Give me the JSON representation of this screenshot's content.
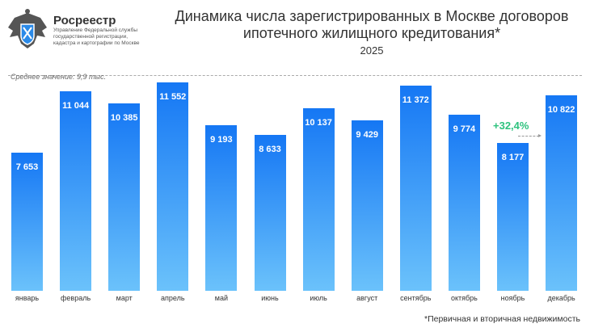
{
  "header": {
    "brand": "Росреестр",
    "subtitle": "Управление Федеральной службы государственной регистрации, кадастра и картографии по Москве"
  },
  "chart_data": {
    "type": "bar",
    "title": "Динамика числа зарегистрированных в Москве договоров ипотечного жилищного кредитования*",
    "subtitle": "2025",
    "categories": [
      "январь",
      "февраль",
      "март",
      "апрель",
      "май",
      "июнь",
      "июль",
      "август",
      "сентябрь",
      "октябрь",
      "ноябрь",
      "декабрь"
    ],
    "values": [
      7653,
      11044,
      10385,
      11552,
      9193,
      8633,
      10137,
      9429,
      11372,
      9774,
      8177,
      10822
    ],
    "labels": [
      "7 653",
      "11 044",
      "10 385",
      "11 552",
      "9 193",
      "8 633",
      "10 137",
      "9 429",
      "11 372",
      "9 774",
      "8 177",
      "10 822"
    ],
    "average_label": "Среднее значение: 9,9 тыс.",
    "annotation": "+32,4%",
    "footnote": "*Первичная и вторичная недвижимость",
    "ylim": [
      0,
      11552
    ],
    "colors": {
      "bar_top": "#1577f4",
      "bar_bottom": "#6bc2fb",
      "growth": "#2ec27e"
    }
  }
}
